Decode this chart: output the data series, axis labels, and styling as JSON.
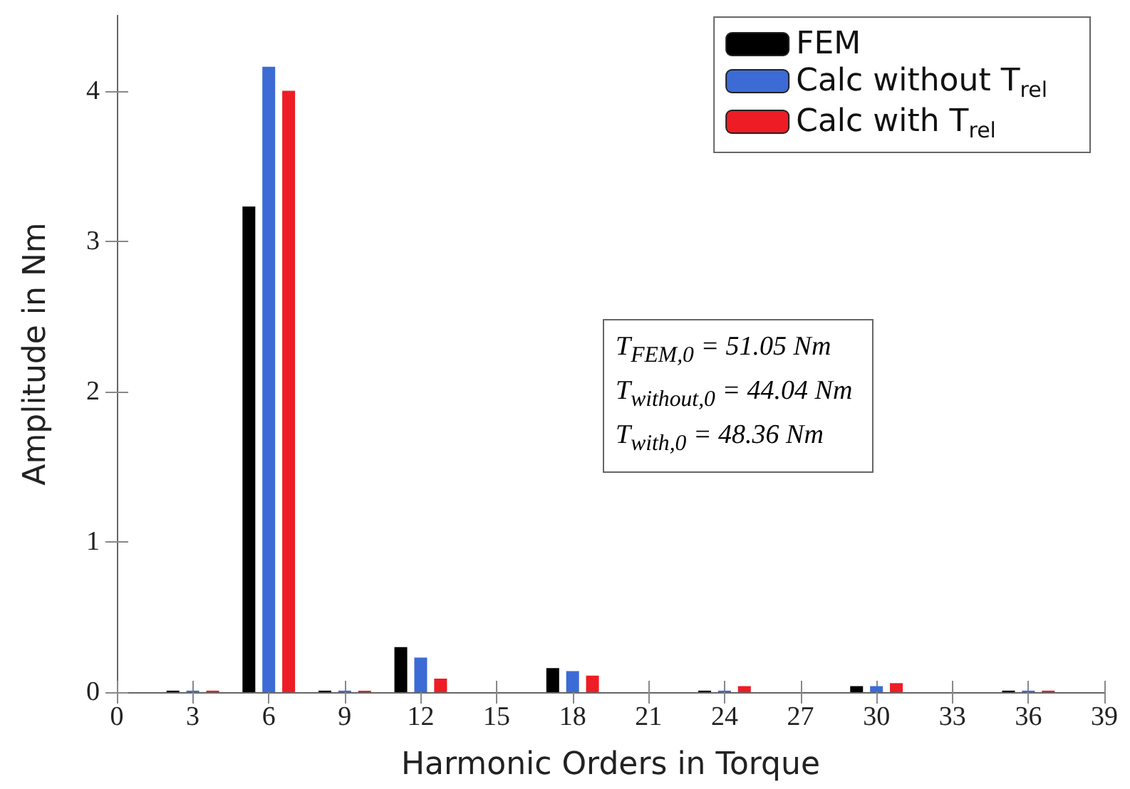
{
  "chart_data": {
    "type": "bar",
    "xlabel": "Harmonic Orders in Torque",
    "ylabel": "Amplitude in Nm",
    "x": [
      3,
      6,
      9,
      12,
      18,
      24,
      30,
      36
    ],
    "series": [
      {
        "name": "FEM",
        "color": "#000000",
        "values": [
          0.01,
          3.23,
          0.01,
          0.3,
          0.16,
          0.01,
          0.04,
          0.01
        ]
      },
      {
        "name": "Calc without T$_{rel}$",
        "color": "#3c6bd6",
        "values": [
          0.01,
          4.16,
          0.01,
          0.23,
          0.14,
          0.01,
          0.04,
          0.01
        ]
      },
      {
        "name": "Calc with T$_{rel}$",
        "color": "#ee1c25",
        "values": [
          0.01,
          4.0,
          0.01,
          0.09,
          0.11,
          0.04,
          0.06,
          0.01
        ]
      }
    ],
    "xlim": [
      0,
      39
    ],
    "xticks": [
      0,
      3,
      6,
      9,
      12,
      15,
      18,
      21,
      24,
      27,
      30,
      33,
      36,
      39
    ],
    "ylim": [
      0,
      4.5
    ],
    "yticks": [
      0,
      1,
      2,
      3,
      4
    ],
    "grid": false,
    "legend": "top right",
    "annotations": [
      "T$_{FEM,0}$ = 51.05 Nm",
      "T$_{without,0}$ = 44.04 Nm",
      "T$_{with,0}$ = 48.36 Nm"
    ]
  }
}
